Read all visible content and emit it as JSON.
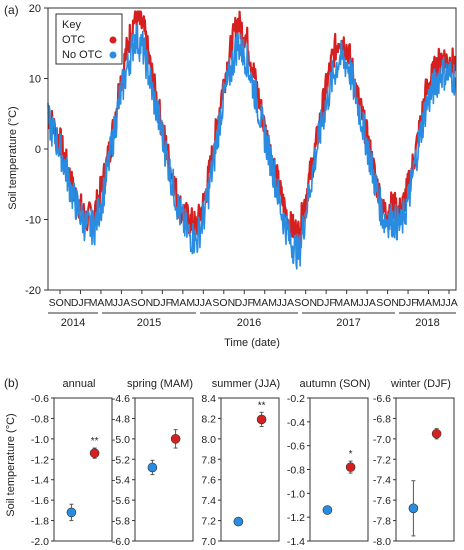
{
  "colors": {
    "otc": "#d62020",
    "no_otc": "#2a8ce0",
    "axis": "#333333"
  },
  "chart_data": [
    {
      "panel_label": "(a)",
      "type": "line",
      "xlabel": "Time (date)",
      "ylabel": "Soil temperature (°C)",
      "ylim": [
        -20,
        20
      ],
      "yticks": [
        -20,
        -10,
        0,
        10,
        20
      ],
      "grid": false,
      "legend": {
        "title": "Key",
        "placement": "top-left",
        "entries": [
          "OTC",
          "No OTC"
        ]
      },
      "season_ticks": [
        "SON",
        "DJF",
        "MAM",
        "JJA",
        "SON",
        "DJF",
        "MAM",
        "JJA",
        "SON",
        "DJF",
        "MAM",
        "JJA",
        "SON",
        "DJF",
        "MAM",
        "JJA",
        "SON",
        "DJF",
        "MAM",
        "JJA"
      ],
      "years": [
        "2014",
        "2015",
        "2016",
        "2017",
        "2018"
      ],
      "x_range": [
        "2014-09-01",
        "2018-08-31"
      ],
      "series": [
        {
          "name": "OTC",
          "x": [
            "2014-09-01",
            "2014-10-15",
            "2014-12-01",
            "2015-01-15",
            "2015-02-15",
            "2015-03-15",
            "2015-04-15",
            "2015-05-15",
            "2015-06-15",
            "2015-07-10",
            "2015-08-10",
            "2015-09-10",
            "2015-10-15",
            "2015-11-15",
            "2015-12-15",
            "2016-01-15",
            "2016-02-15",
            "2016-03-15",
            "2016-04-15",
            "2016-05-15",
            "2016-06-15",
            "2016-07-10",
            "2016-08-10",
            "2016-09-10",
            "2016-10-15",
            "2016-11-15",
            "2016-12-15",
            "2017-01-15",
            "2017-02-15",
            "2017-03-15",
            "2017-04-15",
            "2017-05-15",
            "2017-06-15",
            "2017-07-10",
            "2017-08-10",
            "2017-09-10",
            "2017-10-15",
            "2017-11-15",
            "2017-12-15",
            "2018-01-15",
            "2018-02-15",
            "2018-03-15",
            "2018-04-15",
            "2018-05-15",
            "2018-06-15",
            "2018-07-10",
            "2018-08-31"
          ],
          "y": [
            5,
            1,
            -6,
            -10,
            -9,
            -5,
            1,
            9,
            15,
            19,
            17,
            10,
            3,
            -3,
            -8,
            -10,
            -11,
            -7,
            0,
            8,
            14,
            18,
            16,
            10,
            3,
            -2,
            -7,
            -11,
            -12,
            -6,
            0,
            7,
            13,
            16,
            14,
            8,
            2,
            -4,
            -9,
            -8,
            -9,
            -5,
            1,
            8,
            11,
            13,
            12
          ]
        },
        {
          "name": "No OTC",
          "x": [
            "2014-09-01",
            "2014-10-15",
            "2014-12-01",
            "2015-01-15",
            "2015-02-15",
            "2015-03-15",
            "2015-04-15",
            "2015-05-15",
            "2015-06-15",
            "2015-07-10",
            "2015-08-10",
            "2015-09-10",
            "2015-10-15",
            "2015-11-15",
            "2015-12-15",
            "2016-01-15",
            "2016-02-15",
            "2016-03-15",
            "2016-04-15",
            "2016-05-15",
            "2016-06-15",
            "2016-07-10",
            "2016-08-10",
            "2016-09-10",
            "2016-10-15",
            "2016-11-15",
            "2016-12-15",
            "2017-01-15",
            "2017-02-15",
            "2017-03-15",
            "2017-04-15",
            "2017-05-15",
            "2017-06-15",
            "2017-07-10",
            "2017-08-10",
            "2017-09-10",
            "2017-10-15",
            "2017-11-15",
            "2017-12-15",
            "2018-01-15",
            "2018-02-15",
            "2018-03-15",
            "2018-04-15",
            "2018-05-15",
            "2018-06-15",
            "2018-07-10",
            "2018-08-31"
          ],
          "y": [
            4,
            0,
            -7,
            -11,
            -11,
            -7,
            0,
            7,
            12,
            16,
            14,
            8,
            2,
            -4,
            -9,
            -12,
            -13,
            -9,
            -2,
            6,
            11,
            15,
            13,
            8,
            2,
            -3,
            -9,
            -13,
            -15,
            -8,
            -1,
            5,
            10,
            13,
            12,
            7,
            1,
            -5,
            -10,
            -10,
            -11,
            -7,
            0,
            6,
            9,
            11,
            10
          ]
        }
      ]
    },
    {
      "panel_label": "(b)",
      "type": "scatter",
      "ylabel": "Soil temperature (°C)",
      "legend_entries": [
        "OTC",
        "No OTC"
      ],
      "panels": [
        {
          "title": "annual",
          "ylim": [
            -2.0,
            -0.6
          ],
          "yticks": [
            "-0.6",
            "-0.8",
            "-1.0",
            "-1.2",
            "-1.4",
            "-1.6",
            "-1.8",
            "-2.0"
          ],
          "otc": {
            "mean": -1.14,
            "err": 0.05
          },
          "no_otc": {
            "mean": -1.72,
            "err": 0.08
          },
          "sig": "**"
        },
        {
          "title": "spring (MAM)",
          "ylim": [
            -6.0,
            -4.6
          ],
          "yticks": [
            "-4.6",
            "-4.8",
            "-5.0",
            "-5.2",
            "-5.4",
            "-5.6",
            "-5.8",
            "-6.0"
          ],
          "otc": {
            "mean": -5.0,
            "err": 0.09
          },
          "no_otc": {
            "mean": -5.28,
            "err": 0.07
          },
          "sig": ""
        },
        {
          "title": "summer (JJA)",
          "ylim": [
            7.0,
            8.4
          ],
          "yticks": [
            "8.4",
            "8.2",
            "8.0",
            "7.8",
            "7.6",
            "7.4",
            "7.2",
            "7.0"
          ],
          "otc": {
            "mean": 8.19,
            "err": 0.07
          },
          "no_otc": {
            "mean": 7.19,
            "err": 0.02
          },
          "sig": "**"
        },
        {
          "title": "autumn (SON)",
          "ylim": [
            -1.4,
            -0.2
          ],
          "yticks": [
            "-0.2",
            "-0.4",
            "-0.6",
            "-0.8",
            "-1.0",
            "-1.2",
            "-1.4"
          ],
          "otc": {
            "mean": -0.78,
            "err": 0.05
          },
          "no_otc": {
            "mean": -1.14,
            "err": 0.02
          },
          "sig": "*"
        },
        {
          "title": "winter (DJF)",
          "ylim": [
            -8.0,
            -6.6
          ],
          "yticks": [
            "-6.6",
            "-6.8",
            "-7.0",
            "-7.2",
            "-7.4",
            "-7.6",
            "-7.8",
            "-8.0"
          ],
          "otc": {
            "mean": -6.95,
            "err": 0.05
          },
          "no_otc": {
            "mean": -7.68,
            "err": 0.27
          },
          "sig": ""
        }
      ]
    }
  ]
}
